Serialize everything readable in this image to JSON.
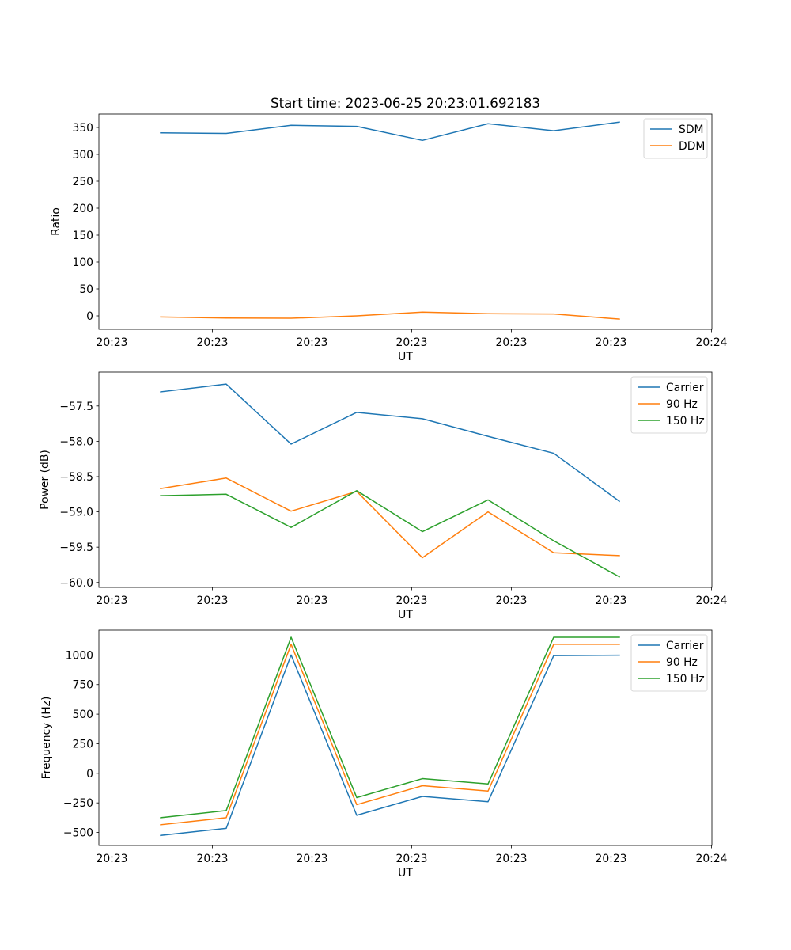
{
  "title": "Start time: 2023-06-25 20:23:01.692183",
  "x_tick_labels": [
    "20:23",
    "20:23",
    "20:23",
    "20:23",
    "20:23",
    "20:23",
    "20:24"
  ],
  "chart_data": [
    {
      "type": "line",
      "title": "Start time: 2023-06-25 20:23:01.692183",
      "xlabel": "UT",
      "ylabel": "Ratio",
      "ylim": [
        -25,
        375
      ],
      "yticks": [
        0,
        50,
        100,
        150,
        200,
        250,
        300,
        350
      ],
      "grid": false,
      "legend_placement": "upper-right",
      "series": [
        {
          "name": "SDM",
          "color": "#1f77b4",
          "values": [
            340,
            339,
            354,
            352,
            326,
            357,
            344,
            360
          ]
        },
        {
          "name": "DDM",
          "color": "#ff7f0e",
          "values": [
            -2,
            -4,
            -4.5,
            0,
            7,
            4,
            3.5,
            -6
          ]
        }
      ]
    },
    {
      "type": "line",
      "xlabel": "UT",
      "ylabel": "Power (dB)",
      "ylim": [
        -60.07,
        -57.02
      ],
      "yticks": [
        -60.0,
        -59.5,
        -59.0,
        -58.5,
        -58.0,
        -57.5
      ],
      "ytick_labels": [
        "−60.0",
        "−59.5",
        "−59.0",
        "−58.5",
        "−58.0",
        "−57.5"
      ],
      "grid": false,
      "legend_placement": "upper-right",
      "series": [
        {
          "name": "Carrier",
          "color": "#1f77b4",
          "values": [
            -57.3,
            -57.19,
            -58.04,
            -57.59,
            -57.68,
            -57.93,
            -58.17,
            -58.85
          ]
        },
        {
          "name": "90 Hz",
          "color": "#ff7f0e",
          "values": [
            -58.67,
            -58.52,
            -58.99,
            -58.71,
            -59.65,
            -59.0,
            -59.58,
            -59.62
          ]
        },
        {
          "name": "150 Hz",
          "color": "#2ca02c",
          "values": [
            -58.77,
            -58.75,
            -59.22,
            -58.7,
            -59.28,
            -58.83,
            -59.41,
            -59.92
          ]
        }
      ]
    },
    {
      "type": "line",
      "xlabel": "UT",
      "ylabel": "Frequency (Hz)",
      "ylim": [
        -610,
        1210
      ],
      "yticks": [
        -500,
        -250,
        0,
        250,
        500,
        750,
        1000
      ],
      "ytick_labels": [
        "−500",
        "−250",
        "0",
        "250",
        "500",
        "750",
        "1000"
      ],
      "grid": false,
      "legend_placement": "upper-right",
      "series": [
        {
          "name": "Carrier",
          "color": "#1f77b4",
          "values": [
            -525,
            -465,
            1000,
            -355,
            -195,
            -240,
            995,
            998
          ]
        },
        {
          "name": "90 Hz",
          "color": "#ff7f0e",
          "values": [
            -435,
            -375,
            1090,
            -265,
            -105,
            -150,
            1090,
            1090
          ]
        },
        {
          "name": "150 Hz",
          "color": "#2ca02c",
          "values": [
            -375,
            -315,
            1150,
            -205,
            -45,
            -90,
            1150,
            1150
          ]
        }
      ]
    }
  ]
}
